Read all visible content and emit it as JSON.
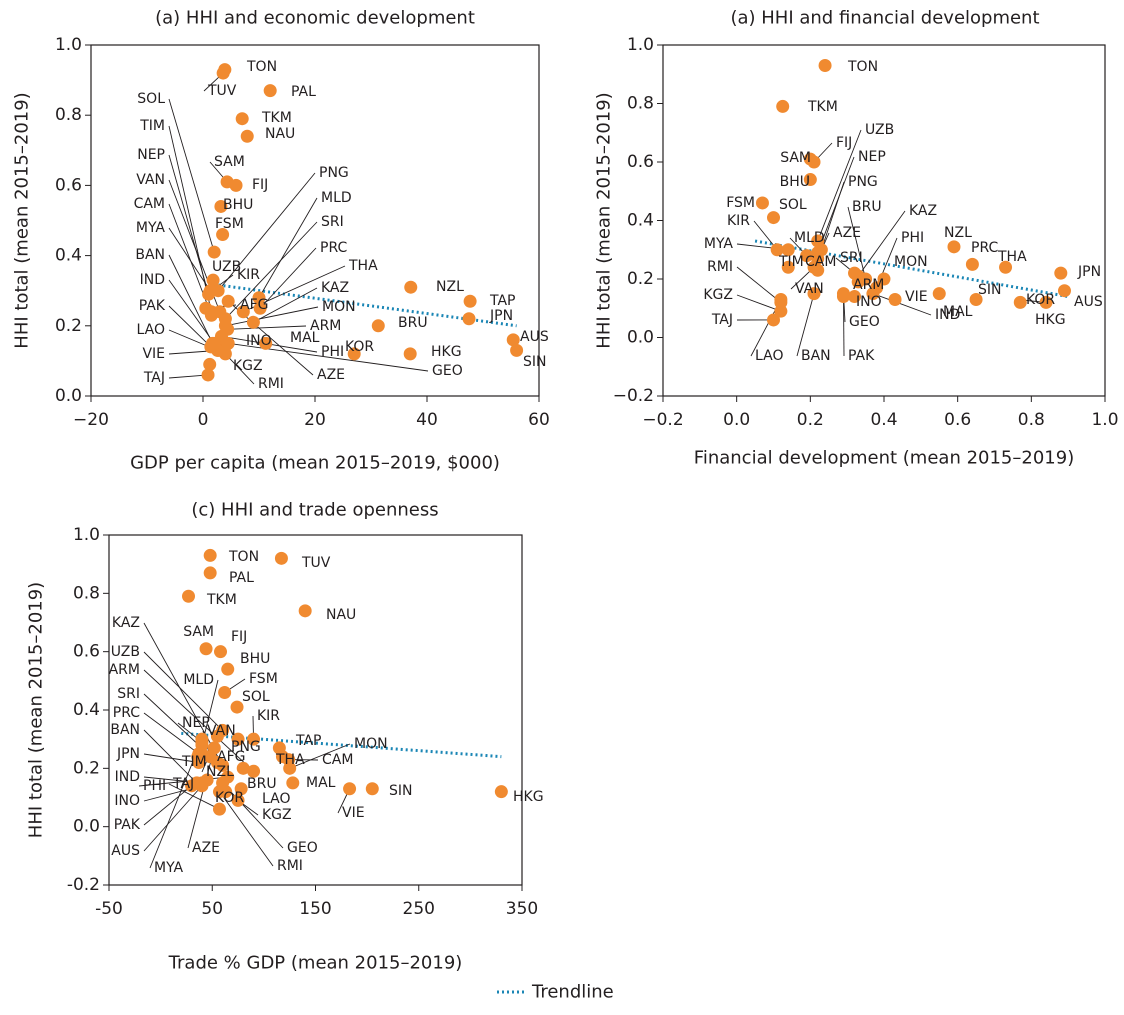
{
  "chart_data": [
    {
      "type": "scatter",
      "title": "(a) HHI and economic development",
      "xlabel": "GDP per capita (mean 2015–2019, $000)",
      "ylabel": "HHI total (mean 2015–2019)",
      "xlim": [
        -20,
        60
      ],
      "ylim": [
        0,
        1
      ],
      "xticks": [
        {
          "value": -20,
          "label": "−20"
        },
        0,
        20,
        40,
        60
      ],
      "yticks": [
        {
          "value": 0,
          "label": "0.0"
        },
        {
          "value": 0.2,
          "label": "0.2"
        },
        {
          "value": 0.4,
          "label": "0.4"
        },
        {
          "value": 0.6,
          "label": "0.6"
        },
        {
          "value": 0.8,
          "label": "0.8"
        },
        {
          "value": 1,
          "label": "1.0"
        }
      ],
      "color": "#f08a30",
      "labels": [
        "TON",
        "TUV",
        "PAL",
        "TKM",
        "NAU",
        "SAM",
        "FIJ",
        "BHU",
        "FSM",
        "SOL",
        "UZB",
        "KIR",
        "NZL",
        "TAP",
        "JPN",
        "AUS",
        "SIN",
        "KOR",
        "BRU",
        "HKG",
        "MAL",
        "INO",
        "ARM",
        "MON",
        "KAZ",
        "THA",
        "PRC",
        "SRI",
        "MLD",
        "PNG",
        "AFG",
        "PHI",
        "GEO",
        "AZE",
        "RMI",
        "KGZ",
        "TAJ",
        "VIE",
        "LAO",
        "PAK",
        "IND",
        "BAN",
        "MYA",
        "CAM",
        "VAN",
        "NEP",
        "TIM"
      ],
      "x": [
        3.9,
        3.6,
        12,
        7,
        7.9,
        4.3,
        5.9,
        3.2,
        3.5,
        2,
        1.8,
        1.6,
        37.1,
        47.7,
        47.5,
        55.4,
        56,
        27,
        31.3,
        37,
        11.2,
        3.9,
        4.4,
        4,
        9,
        7.2,
        10.2,
        4,
        10,
        2.7,
        0.5,
        3.3,
        4.5,
        4.5,
        4,
        1.2,
        0.9,
        2.7,
        2.6,
        1.4,
        2,
        1.7,
        1.3,
        1.5,
        3,
        1,
        1.5
      ],
      "values": [
        0.93,
        0.92,
        0.87,
        0.79,
        0.74,
        0.61,
        0.6,
        0.54,
        0.46,
        0.41,
        0.33,
        0.3,
        0.31,
        0.27,
        0.22,
        0.16,
        0.13,
        0.12,
        0.2,
        0.12,
        0.15,
        0.14,
        0.19,
        0.2,
        0.21,
        0.24,
        0.25,
        0.22,
        0.28,
        0.3,
        0.25,
        0.17,
        0.15,
        0.27,
        0.12,
        0.09,
        0.06,
        0.13,
        0.13,
        0.14,
        0.15,
        0.15,
        0.3,
        0.23,
        0.24,
        0.29,
        0.24
      ],
      "trendline": {
        "x": [
          1,
          56
        ],
        "y": [
          0.32,
          0.2
        ],
        "color": "#1a86b5"
      }
    },
    {
      "type": "scatter",
      "title": "(a) HHI and financial development",
      "xlabel": "Financial development (mean 2015–2019)",
      "ylabel": "HHI total (mean 2015–2019)",
      "xlim": [
        -0.2,
        1
      ],
      "ylim": [
        -0.2,
        1
      ],
      "xticks": [
        {
          "value": -0.2,
          "label": "−0.2"
        },
        {
          "value": 0,
          "label": "0.0"
        },
        0.2,
        0.4,
        0.6,
        0.8,
        {
          "value": 1,
          "label": "1.0"
        }
      ],
      "yticks": [
        {
          "value": -0.2,
          "label": "−0.2"
        },
        {
          "value": 0,
          "label": "0.0"
        },
        0.2,
        0.4,
        0.6,
        0.8,
        {
          "value": 1,
          "label": "1.0"
        }
      ],
      "color": "#f08a30",
      "labels": [
        "TON",
        "TKM",
        "UZB",
        "FIJ",
        "NEP",
        "SAM",
        "BHU",
        "PNG",
        "FSM",
        "SOL",
        "KIR",
        "MLD",
        "AZE",
        "BRU",
        "KAZ",
        "NZL",
        "PRC",
        "THA",
        "JPN",
        "MYA",
        "PHI",
        "TIM",
        "CAM",
        "SRI",
        "MON",
        "ARM",
        "RMI",
        "KGZ",
        "TAJ",
        "VAN",
        "INO",
        "VIE",
        "IND",
        "GEO",
        "LAO",
        "BAN",
        "PAK",
        "MAL",
        "SIN",
        "HKG",
        "KOR",
        "AUS"
      ],
      "x": [
        0.24,
        0.125,
        0.22,
        0.21,
        0.22,
        0.2,
        0.2,
        0.23,
        0.07,
        0.1,
        0.11,
        0.19,
        0.22,
        0.35,
        0.33,
        0.59,
        0.64,
        0.73,
        0.88,
        0.14,
        0.38,
        0.14,
        0.22,
        0.32,
        0.4,
        0.33,
        0.12,
        0.12,
        0.1,
        0.21,
        0.32,
        0.43,
        0.37,
        0.29,
        0.12,
        0.21,
        0.29,
        0.55,
        0.65,
        0.77,
        0.84,
        0.89
      ],
      "values": [
        0.93,
        0.79,
        0.33,
        0.6,
        0.29,
        0.61,
        0.54,
        0.3,
        0.46,
        0.41,
        0.3,
        0.28,
        0.27,
        0.2,
        0.21,
        0.31,
        0.25,
        0.24,
        0.22,
        0.3,
        0.17,
        0.24,
        0.23,
        0.22,
        0.2,
        0.19,
        0.12,
        0.09,
        0.06,
        0.24,
        0.14,
        0.13,
        0.15,
        0.15,
        0.13,
        0.15,
        0.14,
        0.15,
        0.13,
        0.12,
        0.12,
        0.16
      ],
      "trendline": {
        "x": [
          0.05,
          0.9
        ],
        "y": [
          0.33,
          0.14
        ],
        "color": "#1a86b5"
      }
    },
    {
      "type": "scatter",
      "title": "(c) HHI and trade openness",
      "xlabel": "Trade % GDP (mean 2015–2019)",
      "ylabel": "HHI total (mean 2015–2019)",
      "xlim": [
        -50,
        350
      ],
      "ylim": [
        -0.2,
        1
      ],
      "xticks": [
        -50,
        50,
        150,
        250,
        350
      ],
      "yticks": [
        {
          "value": -0.2,
          "label": "-0.2"
        },
        {
          "value": 0,
          "label": "0.0"
        },
        0.2,
        0.4,
        0.6,
        0.8,
        {
          "value": 1,
          "label": "1.0"
        }
      ],
      "color": "#f08a30",
      "labels": [
        "TON",
        "TUV",
        "PAL",
        "TKM",
        "NAU",
        "SAM",
        "FIJ",
        "BHU",
        "FSM",
        "MLD",
        "SOL",
        "KIR",
        "NEP",
        "VAN",
        "PNG",
        "AFG",
        "TAP",
        "THA",
        "CAM",
        "MON",
        "MAL",
        "SIN",
        "VIE",
        "HKG",
        "BRU",
        "LAO",
        "KGZ",
        "GEO",
        "RMI",
        "AZE",
        "MYA",
        "AUS",
        "PAK",
        "INO",
        "IND",
        "JPN",
        "BAN",
        "PRC",
        "SRI",
        "ARM",
        "UZB",
        "KAZ",
        "TAJ",
        "KOR",
        "NZL",
        "PHI",
        "TIM"
      ],
      "x": [
        48,
        117,
        48,
        27,
        140,
        44,
        58,
        65,
        62,
        40,
        74,
        90,
        40,
        48,
        75,
        40,
        115,
        118,
        124,
        125,
        128,
        205,
        183,
        330,
        80,
        78,
        75,
        60,
        57,
        52,
        40,
        45,
        30,
        40,
        40,
        37,
        35,
        37,
        55,
        90,
        60,
        60,
        57,
        63,
        55,
        65,
        36
      ],
      "values": [
        0.93,
        0.92,
        0.87,
        0.79,
        0.74,
        0.61,
        0.6,
        0.54,
        0.46,
        0.28,
        0.41,
        0.3,
        0.29,
        0.24,
        0.3,
        0.25,
        0.27,
        0.24,
        0.23,
        0.2,
        0.15,
        0.13,
        0.13,
        0.12,
        0.2,
        0.13,
        0.09,
        0.15,
        0.12,
        0.27,
        0.3,
        0.16,
        0.14,
        0.14,
        0.15,
        0.22,
        0.15,
        0.25,
        0.22,
        0.19,
        0.33,
        0.21,
        0.06,
        0.12,
        0.31,
        0.17,
        0.24
      ],
      "trendline": {
        "x": [
          20,
          330
        ],
        "y": [
          0.32,
          0.24
        ],
        "color": "#1a86b5"
      }
    }
  ],
  "legend": {
    "label": "Trendline",
    "color": "#1a86b5"
  }
}
